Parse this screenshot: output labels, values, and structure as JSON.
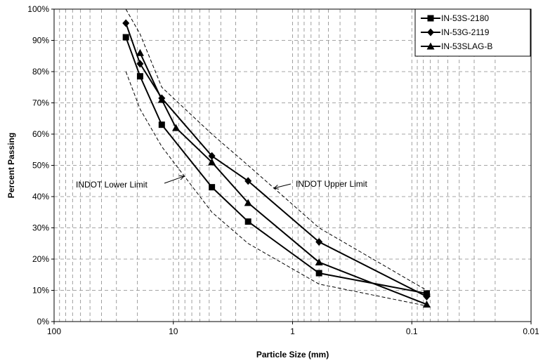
{
  "chart_data": {
    "type": "line",
    "title": "",
    "xlabel": "Particle Size (mm)",
    "ylabel": "Percent Passing",
    "x_scale": "log",
    "x_reversed": true,
    "xlim": [
      100,
      0.01
    ],
    "ylim": [
      0,
      100
    ],
    "x_ticks": [
      "100",
      "10",
      "1",
      "0.1",
      "0.01"
    ],
    "y_ticks": [
      "0%",
      "10%",
      "20%",
      "30%",
      "40%",
      "50%",
      "60%",
      "70%",
      "80%",
      "90%",
      "100%"
    ],
    "grid": true,
    "legend_position": "top-right",
    "series": [
      {
        "name": "IN-53S-2180",
        "marker": "square",
        "x": [
          25,
          19,
          12.5,
          4.75,
          2.36,
          0.6,
          0.075
        ],
        "y": [
          91,
          78.5,
          63,
          43,
          32,
          15.5,
          9
        ]
      },
      {
        "name": "IN-53G-2119",
        "marker": "diamond",
        "x": [
          25,
          19,
          12.5,
          4.75,
          2.36,
          0.6,
          0.075
        ],
        "y": [
          95.5,
          82.5,
          71.5,
          53,
          45,
          25.5,
          8
        ]
      },
      {
        "name": "IN-53SLAG-B",
        "marker": "triangle",
        "x": [
          19,
          12.5,
          9.5,
          4.75,
          2.36,
          0.6,
          0.075
        ],
        "y": [
          86,
          71,
          62,
          51,
          38,
          19,
          5.5
        ]
      }
    ],
    "limits": [
      {
        "label": "INDOT Lower Limit",
        "x": [
          25,
          19,
          12.5,
          4.75,
          2.36,
          0.6,
          0.075
        ],
        "y": [
          80,
          68,
          56,
          35,
          25,
          12,
          5
        ]
      },
      {
        "label": "INDOT Upper Limit",
        "x": [
          25,
          19,
          12.5,
          4.75,
          2.36,
          0.6,
          0.075
        ],
        "y": [
          100,
          92,
          75,
          60,
          50,
          30,
          10
        ]
      }
    ]
  }
}
